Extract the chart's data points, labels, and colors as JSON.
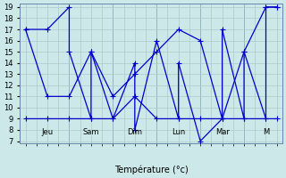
{
  "xlabel": "Température (°c)",
  "background_color": "#cce8e8",
  "grid_color": "#aacccc",
  "line_color": "#0000cc",
  "y_min": 7,
  "y_max": 19,
  "y_ticks": [
    7,
    8,
    9,
    10,
    11,
    12,
    13,
    14,
    15,
    16,
    17,
    18,
    19
  ],
  "x_day_labels": [
    "Jeu",
    "Sam",
    "Dim",
    "Lun",
    "Mar",
    "M"
  ],
  "x_day_positions": [
    2,
    6,
    10,
    14,
    18,
    22
  ],
  "x_tick_positions": [
    0,
    1,
    2,
    3,
    4,
    5,
    6,
    7,
    8,
    9,
    10,
    11,
    12,
    13,
    14,
    15,
    16,
    17,
    18,
    19,
    20,
    21,
    22,
    23
  ],
  "line1_x": [
    0,
    2,
    4,
    4,
    6,
    6,
    8,
    10,
    10,
    12,
    14,
    14,
    16,
    18,
    18,
    20,
    20,
    22,
    22,
    23
  ],
  "line1_y": [
    17,
    17,
    19,
    15,
    9,
    15,
    9,
    14,
    8,
    16,
    9,
    14,
    7,
    9,
    17,
    9,
    15,
    9,
    19,
    19
  ],
  "line2_x": [
    0,
    2,
    4,
    6,
    8,
    10,
    12,
    14,
    16,
    18,
    20,
    22,
    23
  ],
  "line2_y": [
    9,
    9,
    9,
    9,
    9,
    11,
    9,
    9,
    9,
    9,
    9,
    9,
    9
  ],
  "line3_x": [
    0,
    2,
    4,
    6,
    8,
    10,
    12,
    14,
    16,
    18,
    20,
    22,
    23
  ],
  "line3_y": [
    17,
    11,
    11,
    15,
    11,
    13,
    15,
    17,
    16,
    9,
    15,
    19,
    19
  ]
}
